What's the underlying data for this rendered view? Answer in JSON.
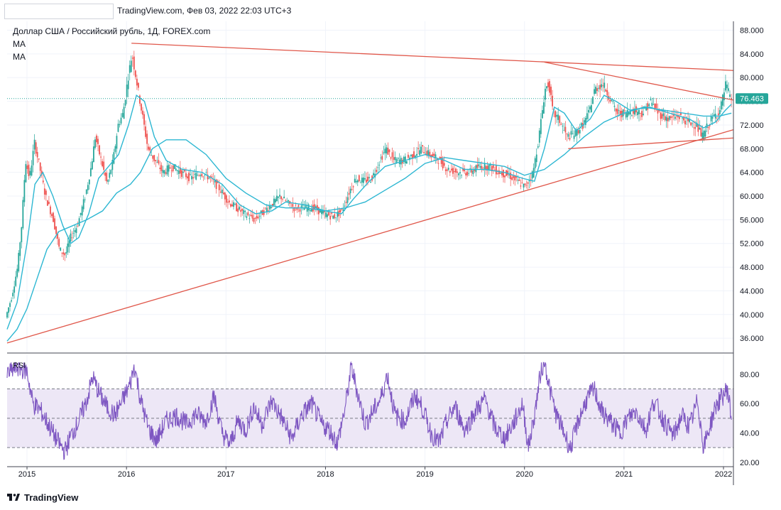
{
  "header": {
    "text": "TradingView.com, Фев 03, 2022 22:03 UTC+3"
  },
  "legend": {
    "title": "Доллар США / Российский рубль, 1Д, FOREX.com",
    "ma1": "MA",
    "ma2": "MA"
  },
  "footer": {
    "brand": "TradingView",
    "logo_icon": "tradingview-logo-icon"
  },
  "colors": {
    "up": "#26a69a",
    "down": "#ef5350",
    "ma": "#2db7d2",
    "trend": "#e0574a",
    "rsi": "#7e57c2",
    "rsi_band": "#ede7f6",
    "price_badge": "#26a69a"
  },
  "chart_data": {
    "type": "candlestick",
    "title": "Доллар США / Российский рубль, 1Д, FOREX.com",
    "x_ticks": [
      "2015",
      "2016",
      "2017",
      "2018",
      "2019",
      "2020",
      "2021",
      "2022"
    ],
    "x_tick_years": [
      2015,
      2016,
      2017,
      2018,
      2019,
      2020,
      2021,
      2022
    ],
    "x_range": [
      2014.8,
      2022.1
    ],
    "y_ticks": [
      "88.000",
      "84.000",
      "80.000",
      "76.000",
      "72.000",
      "68.000",
      "64.000",
      "60.000",
      "56.000",
      "52.000",
      "48.000",
      "44.000",
      "40.000",
      "36.000"
    ],
    "y_tick_values": [
      88,
      84,
      80,
      76,
      72,
      68,
      64,
      60,
      56,
      52,
      48,
      44,
      40,
      36
    ],
    "y_range": [
      33.5,
      89.5
    ],
    "last_price": "76.463",
    "last_price_value": 76.463,
    "price_path": [
      [
        2014.8,
        39.5
      ],
      [
        2014.86,
        43
      ],
      [
        2014.92,
        48
      ],
      [
        2014.96,
        55
      ],
      [
        2015.0,
        66
      ],
      [
        2015.04,
        63
      ],
      [
        2015.09,
        69
      ],
      [
        2015.14,
        65
      ],
      [
        2015.2,
        60
      ],
      [
        2015.28,
        56
      ],
      [
        2015.34,
        51
      ],
      [
        2015.4,
        50
      ],
      [
        2015.45,
        53
      ],
      [
        2015.52,
        55
      ],
      [
        2015.6,
        60
      ],
      [
        2015.66,
        65
      ],
      [
        2015.7,
        70
      ],
      [
        2015.76,
        66
      ],
      [
        2015.82,
        62
      ],
      [
        2015.88,
        66
      ],
      [
        2015.93,
        72
      ],
      [
        2015.98,
        74
      ],
      [
        2016.03,
        80
      ],
      [
        2016.07,
        84
      ],
      [
        2016.12,
        79
      ],
      [
        2016.18,
        73
      ],
      [
        2016.23,
        68
      ],
      [
        2016.3,
        66
      ],
      [
        2016.38,
        64
      ],
      [
        2016.47,
        65
      ],
      [
        2016.56,
        64
      ],
      [
        2016.66,
        63
      ],
      [
        2016.76,
        64
      ],
      [
        2016.86,
        63
      ],
      [
        2016.96,
        61
      ],
      [
        2017.04,
        59
      ],
      [
        2017.12,
        58
      ],
      [
        2017.2,
        57
      ],
      [
        2017.3,
        56
      ],
      [
        2017.4,
        57.5
      ],
      [
        2017.5,
        59
      ],
      [
        2017.56,
        60
      ],
      [
        2017.62,
        59
      ],
      [
        2017.7,
        58
      ],
      [
        2017.8,
        58
      ],
      [
        2017.9,
        58
      ],
      [
        2018.0,
        57
      ],
      [
        2018.1,
        56.5
      ],
      [
        2018.18,
        57.5
      ],
      [
        2018.26,
        61
      ],
      [
        2018.32,
        63
      ],
      [
        2018.4,
        62.5
      ],
      [
        2018.48,
        63
      ],
      [
        2018.56,
        66
      ],
      [
        2018.62,
        68
      ],
      [
        2018.7,
        66
      ],
      [
        2018.8,
        66
      ],
      [
        2018.9,
        67
      ],
      [
        2018.98,
        68
      ],
      [
        2019.06,
        67
      ],
      [
        2019.16,
        66
      ],
      [
        2019.24,
        64.5
      ],
      [
        2019.36,
        64
      ],
      [
        2019.46,
        64
      ],
      [
        2019.56,
        65
      ],
      [
        2019.66,
        65
      ],
      [
        2019.76,
        64
      ],
      [
        2019.86,
        63.5
      ],
      [
        2019.94,
        62.5
      ],
      [
        2020.02,
        61.5
      ],
      [
        2020.1,
        64
      ],
      [
        2020.16,
        70
      ],
      [
        2020.22,
        78
      ],
      [
        2020.26,
        79
      ],
      [
        2020.3,
        74
      ],
      [
        2020.36,
        73
      ],
      [
        2020.44,
        70
      ],
      [
        2020.52,
        70.5
      ],
      [
        2020.6,
        72
      ],
      [
        2020.66,
        74
      ],
      [
        2020.72,
        78
      ],
      [
        2020.8,
        79
      ],
      [
        2020.86,
        77
      ],
      [
        2020.94,
        74
      ],
      [
        2021.02,
        74
      ],
      [
        2021.12,
        74.5
      ],
      [
        2021.2,
        74
      ],
      [
        2021.28,
        76
      ],
      [
        2021.36,
        74
      ],
      [
        2021.46,
        73
      ],
      [
        2021.56,
        73.5
      ],
      [
        2021.66,
        72.5
      ],
      [
        2021.74,
        72
      ],
      [
        2021.8,
        70
      ],
      [
        2021.86,
        72
      ],
      [
        2021.92,
        73.5
      ],
      [
        2021.98,
        74.5
      ],
      [
        2022.04,
        79
      ],
      [
        2022.08,
        76.5
      ]
    ],
    "ma_fast": [
      [
        2014.8,
        37.5
      ],
      [
        2014.9,
        42
      ],
      [
        2015.0,
        52
      ],
      [
        2015.08,
        62
      ],
      [
        2015.16,
        64
      ],
      [
        2015.26,
        60
      ],
      [
        2015.36,
        55
      ],
      [
        2015.44,
        52
      ],
      [
        2015.52,
        53
      ],
      [
        2015.62,
        57
      ],
      [
        2015.72,
        63
      ],
      [
        2015.82,
        65
      ],
      [
        2015.92,
        67
      ],
      [
        2016.02,
        72
      ],
      [
        2016.1,
        77
      ],
      [
        2016.18,
        76
      ],
      [
        2016.28,
        70
      ],
      [
        2016.4,
        66
      ],
      [
        2016.56,
        64.5
      ],
      [
        2016.76,
        64
      ],
      [
        2016.96,
        62
      ],
      [
        2017.14,
        58.5
      ],
      [
        2017.3,
        57
      ],
      [
        2017.46,
        57.5
      ],
      [
        2017.6,
        59
      ],
      [
        2017.8,
        58.5
      ],
      [
        2018.0,
        57.5
      ],
      [
        2018.16,
        57
      ],
      [
        2018.28,
        59.5
      ],
      [
        2018.44,
        62.5
      ],
      [
        2018.6,
        65
      ],
      [
        2018.8,
        66
      ],
      [
        2019.0,
        67
      ],
      [
        2019.2,
        66
      ],
      [
        2019.4,
        64.5
      ],
      [
        2019.6,
        64.5
      ],
      [
        2019.8,
        64
      ],
      [
        2019.98,
        63
      ],
      [
        2020.1,
        62.5
      ],
      [
        2020.2,
        68
      ],
      [
        2020.3,
        75
      ],
      [
        2020.4,
        74
      ],
      [
        2020.52,
        71
      ],
      [
        2020.66,
        73
      ],
      [
        2020.8,
        77
      ],
      [
        2020.92,
        76
      ],
      [
        2021.06,
        74.5
      ],
      [
        2021.26,
        75
      ],
      [
        2021.46,
        74
      ],
      [
        2021.66,
        73
      ],
      [
        2021.8,
        71.5
      ],
      [
        2021.92,
        72.5
      ],
      [
        2022.02,
        74.5
      ],
      [
        2022.08,
        75.5
      ]
    ],
    "ma_slow": [
      [
        2014.8,
        35.5
      ],
      [
        2014.9,
        37.5
      ],
      [
        2015.0,
        41
      ],
      [
        2015.1,
        46
      ],
      [
        2015.2,
        51
      ],
      [
        2015.32,
        54
      ],
      [
        2015.46,
        55
      ],
      [
        2015.6,
        56
      ],
      [
        2015.76,
        57.5
      ],
      [
        2015.9,
        60.5
      ],
      [
        2016.04,
        62
      ],
      [
        2016.14,
        64
      ],
      [
        2016.26,
        68
      ],
      [
        2016.4,
        69.5
      ],
      [
        2016.6,
        69.5
      ],
      [
        2016.8,
        67
      ],
      [
        2017.0,
        63
      ],
      [
        2017.2,
        60.5
      ],
      [
        2017.4,
        58.5
      ],
      [
        2017.6,
        58
      ],
      [
        2017.8,
        58
      ],
      [
        2018.0,
        57.5
      ],
      [
        2018.2,
        58
      ],
      [
        2018.4,
        59
      ],
      [
        2018.6,
        61
      ],
      [
        2018.8,
        63
      ],
      [
        2019.0,
        65.5
      ],
      [
        2019.2,
        66.5
      ],
      [
        2019.4,
        66
      ],
      [
        2019.6,
        65.5
      ],
      [
        2019.8,
        65
      ],
      [
        2020.0,
        63.5
      ],
      [
        2020.2,
        64.5
      ],
      [
        2020.4,
        67
      ],
      [
        2020.6,
        70
      ],
      [
        2020.8,
        72.5
      ],
      [
        2021.0,
        74
      ],
      [
        2021.2,
        75
      ],
      [
        2021.4,
        74.5
      ],
      [
        2021.6,
        74
      ],
      [
        2021.8,
        73.5
      ],
      [
        2021.96,
        73.5
      ],
      [
        2022.08,
        74
      ]
    ],
    "trendlines": [
      [
        [
          2016.05,
          85.8
        ],
        [
          2022.1,
          81.2
        ]
      ],
      [
        [
          2014.8,
          35.2
        ],
        [
          2022.1,
          71.2
        ]
      ],
      [
        [
          2020.2,
          82.6
        ],
        [
          2022.1,
          76.2
        ]
      ],
      [
        [
          2020.44,
          68.0
        ],
        [
          2022.1,
          69.8
        ]
      ]
    ],
    "rsi": {
      "label": "RSI",
      "y_ticks": [
        "80.00",
        "60.00",
        "40.00",
        "20.00"
      ],
      "y_tick_values": [
        80,
        60,
        40,
        20
      ],
      "y_range": [
        17,
        93
      ],
      "upper": 70,
      "middle": 50,
      "lower": 30,
      "path": [
        [
          2014.8,
          80
        ],
        [
          2014.9,
          85
        ],
        [
          2015.0,
          82
        ],
        [
          2015.06,
          60
        ],
        [
          2015.14,
          55
        ],
        [
          2015.22,
          45
        ],
        [
          2015.3,
          35
        ],
        [
          2015.38,
          27
        ],
        [
          2015.44,
          38
        ],
        [
          2015.52,
          48
        ],
        [
          2015.6,
          62
        ],
        [
          2015.66,
          78
        ],
        [
          2015.72,
          68
        ],
        [
          2015.8,
          58
        ],
        [
          2015.88,
          52
        ],
        [
          2015.96,
          62
        ],
        [
          2016.04,
          74
        ],
        [
          2016.08,
          86
        ],
        [
          2016.14,
          63
        ],
        [
          2016.22,
          43
        ],
        [
          2016.3,
          35
        ],
        [
          2016.4,
          48
        ],
        [
          2016.5,
          52
        ],
        [
          2016.6,
          46
        ],
        [
          2016.7,
          53
        ],
        [
          2016.8,
          48
        ],
        [
          2016.88,
          65
        ],
        [
          2016.96,
          40
        ],
        [
          2017.04,
          32
        ],
        [
          2017.12,
          48
        ],
        [
          2017.2,
          42
        ],
        [
          2017.28,
          58
        ],
        [
          2017.36,
          46
        ],
        [
          2017.46,
          62
        ],
        [
          2017.56,
          50
        ],
        [
          2017.66,
          36
        ],
        [
          2017.76,
          52
        ],
        [
          2017.86,
          60
        ],
        [
          2017.96,
          46
        ],
        [
          2018.04,
          42
        ],
        [
          2018.12,
          33
        ],
        [
          2018.2,
          58
        ],
        [
          2018.26,
          85
        ],
        [
          2018.32,
          68
        ],
        [
          2018.4,
          46
        ],
        [
          2018.48,
          55
        ],
        [
          2018.56,
          64
        ],
        [
          2018.62,
          80
        ],
        [
          2018.7,
          52
        ],
        [
          2018.8,
          48
        ],
        [
          2018.9,
          66
        ],
        [
          2018.98,
          56
        ],
        [
          2019.06,
          40
        ],
        [
          2019.14,
          33
        ],
        [
          2019.22,
          48
        ],
        [
          2019.3,
          58
        ],
        [
          2019.4,
          42
        ],
        [
          2019.5,
          54
        ],
        [
          2019.6,
          63
        ],
        [
          2019.7,
          44
        ],
        [
          2019.8,
          36
        ],
        [
          2019.9,
          48
        ],
        [
          2019.98,
          60
        ],
        [
          2020.04,
          30
        ],
        [
          2020.1,
          52
        ],
        [
          2020.16,
          80
        ],
        [
          2020.2,
          90
        ],
        [
          2020.26,
          68
        ],
        [
          2020.32,
          52
        ],
        [
          2020.4,
          40
        ],
        [
          2020.46,
          29
        ],
        [
          2020.54,
          48
        ],
        [
          2020.62,
          62
        ],
        [
          2020.7,
          70
        ],
        [
          2020.78,
          54
        ],
        [
          2020.86,
          48
        ],
        [
          2020.96,
          40
        ],
        [
          2021.04,
          50
        ],
        [
          2021.12,
          55
        ],
        [
          2021.22,
          42
        ],
        [
          2021.3,
          62
        ],
        [
          2021.4,
          48
        ],
        [
          2021.5,
          38
        ],
        [
          2021.58,
          52
        ],
        [
          2021.66,
          44
        ],
        [
          2021.74,
          62
        ],
        [
          2021.8,
          30
        ],
        [
          2021.86,
          44
        ],
        [
          2021.92,
          58
        ],
        [
          2021.98,
          64
        ],
        [
          2022.04,
          70
        ],
        [
          2022.08,
          50
        ]
      ]
    }
  }
}
